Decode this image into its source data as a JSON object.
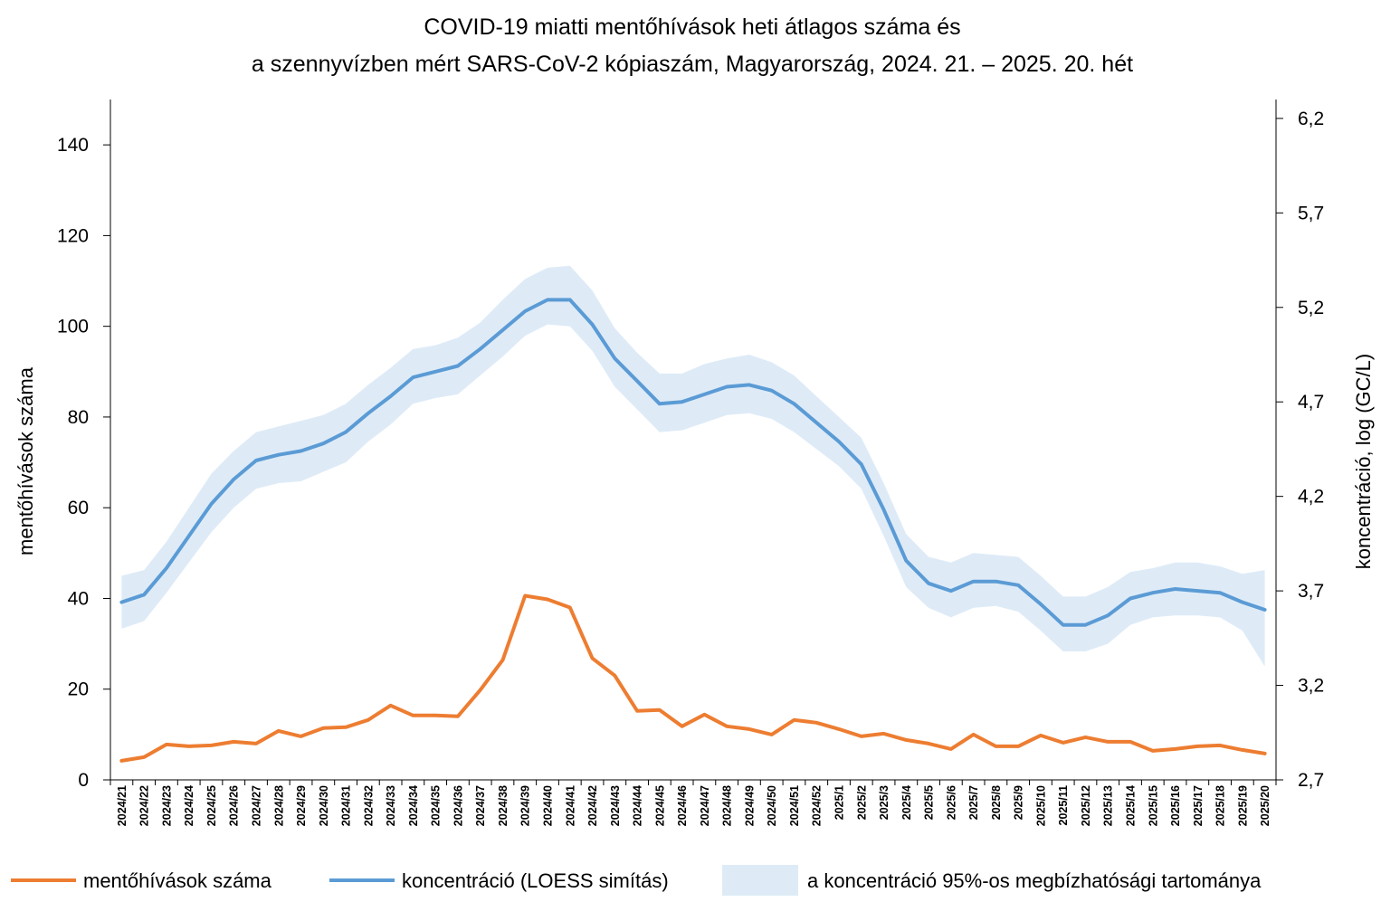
{
  "chart_data": {
    "type": "line",
    "title_lines": [
      "COVID-19 miatti mentőhívások heti átlagos száma és",
      "a szennyvízben mért SARS-CoV-2 kópiaszám, Magyarország, 2024. 21. – 2025. 20. hét"
    ],
    "ylabel_left": "mentőhívások száma",
    "ylabel_right": "koncentráció,  log (GC/L)",
    "ylim_left": [
      0,
      150
    ],
    "yticks_left": [
      0,
      20,
      40,
      60,
      80,
      100,
      120,
      140
    ],
    "ylim_right": [
      2.7,
      6.3
    ],
    "yticks_right": [
      "2,7",
      "3,2",
      "3,7",
      "4,2",
      "4,7",
      "5,2",
      "5,7",
      "6,2"
    ],
    "yticks_right_values": [
      2.7,
      3.2,
      3.7,
      4.2,
      4.7,
      5.2,
      5.7,
      6.2
    ],
    "categories": [
      "2024/21",
      "2024/22",
      "2024/23",
      "2024/24",
      "2024/25",
      "2024/26",
      "2024/27",
      "2024/28",
      "2024/29",
      "2024/30",
      "2024/31",
      "2024/32",
      "2024/33",
      "2024/34",
      "2024/35",
      "2024/36",
      "2024/37",
      "2024/38",
      "2024/39",
      "2024/40",
      "2024/41",
      "2024/42",
      "2024/43",
      "2024/44",
      "2024/45",
      "2024/46",
      "2024/47",
      "2024/48",
      "2024/49",
      "2024/50",
      "2024/51",
      "2024/52",
      "2025/1",
      "2025/2",
      "2025/3",
      "2025/4",
      "2025/5",
      "2025/6",
      "2025/7",
      "2025/8",
      "2025/9",
      "2025/10",
      "2025/11",
      "2025/12",
      "2025/13",
      "2025/14",
      "2025/15",
      "2025/16",
      "2025/17",
      "2025/18",
      "2025/19",
      "2025/20"
    ],
    "series": [
      {
        "name": "mentőhívások száma",
        "axis": "left",
        "color": "#ED7D31",
        "values": [
          4.2,
          5.0,
          7.8,
          7.4,
          7.6,
          8.4,
          8.0,
          10.8,
          9.6,
          11.4,
          11.6,
          13.2,
          16.4,
          14.2,
          14.2,
          14.0,
          19.8,
          26.4,
          40.6,
          39.8,
          38.0,
          26.8,
          23.0,
          15.2,
          15.4,
          11.8,
          14.4,
          11.8,
          11.2,
          10.0,
          13.2,
          12.6,
          11.2,
          9.6,
          10.2,
          8.8,
          8.0,
          6.8,
          10.0,
          7.4,
          7.4,
          9.8,
          8.2,
          9.4,
          8.4,
          8.4,
          6.4,
          6.8,
          7.4,
          7.6,
          6.6,
          5.8
        ]
      },
      {
        "name": "koncentráció (LOESS simítás)",
        "axis": "right",
        "color": "#5B9BD5",
        "values": [
          3.64,
          3.68,
          3.82,
          3.99,
          4.16,
          4.29,
          4.39,
          4.42,
          4.44,
          4.48,
          4.54,
          4.64,
          4.73,
          4.83,
          4.86,
          4.89,
          4.98,
          5.08,
          5.18,
          5.24,
          5.24,
          5.11,
          4.93,
          4.81,
          4.69,
          4.7,
          4.74,
          4.78,
          4.79,
          4.76,
          4.69,
          4.59,
          4.49,
          4.37,
          4.13,
          3.86,
          3.74,
          3.7,
          3.75,
          3.75,
          3.73,
          3.63,
          3.52,
          3.52,
          3.57,
          3.66,
          3.69,
          3.71,
          3.7,
          3.69,
          3.64,
          3.6
        ]
      }
    ],
    "band": {
      "name": "a koncentráció 95%-os megbízhatósági tartománya",
      "axis": "right",
      "color": "#DEEBF7",
      "upper": [
        3.78,
        3.81,
        3.96,
        4.14,
        4.32,
        4.44,
        4.54,
        4.57,
        4.6,
        4.63,
        4.69,
        4.79,
        4.88,
        4.98,
        5.0,
        5.04,
        5.12,
        5.24,
        5.35,
        5.41,
        5.42,
        5.29,
        5.09,
        4.96,
        4.85,
        4.85,
        4.9,
        4.93,
        4.95,
        4.91,
        4.84,
        4.73,
        4.62,
        4.51,
        4.27,
        4.0,
        3.88,
        3.85,
        3.9,
        3.89,
        3.88,
        3.78,
        3.67,
        3.67,
        3.72,
        3.8,
        3.82,
        3.85,
        3.85,
        3.83,
        3.79,
        3.81
      ],
      "lower": [
        3.5,
        3.54,
        3.69,
        3.85,
        4.01,
        4.14,
        4.24,
        4.27,
        4.28,
        4.33,
        4.38,
        4.49,
        4.58,
        4.69,
        4.72,
        4.74,
        4.84,
        4.94,
        5.05,
        5.11,
        5.1,
        4.97,
        4.78,
        4.66,
        4.54,
        4.55,
        4.59,
        4.63,
        4.64,
        4.61,
        4.54,
        4.45,
        4.36,
        4.24,
        3.99,
        3.72,
        3.61,
        3.56,
        3.61,
        3.62,
        3.59,
        3.49,
        3.38,
        3.38,
        3.42,
        3.52,
        3.56,
        3.57,
        3.57,
        3.56,
        3.49,
        3.3
      ]
    },
    "legend": {
      "position": "bottom",
      "items": [
        {
          "label": "mentőhívások száma",
          "kind": "line",
          "color": "#ED7D31"
        },
        {
          "label": "koncentráció (LOESS simítás)",
          "kind": "line",
          "color": "#5B9BD5"
        },
        {
          "label": "a koncentráció 95%-os megbízhatósági tartománya",
          "kind": "area",
          "color": "#DEEBF7"
        }
      ]
    }
  }
}
